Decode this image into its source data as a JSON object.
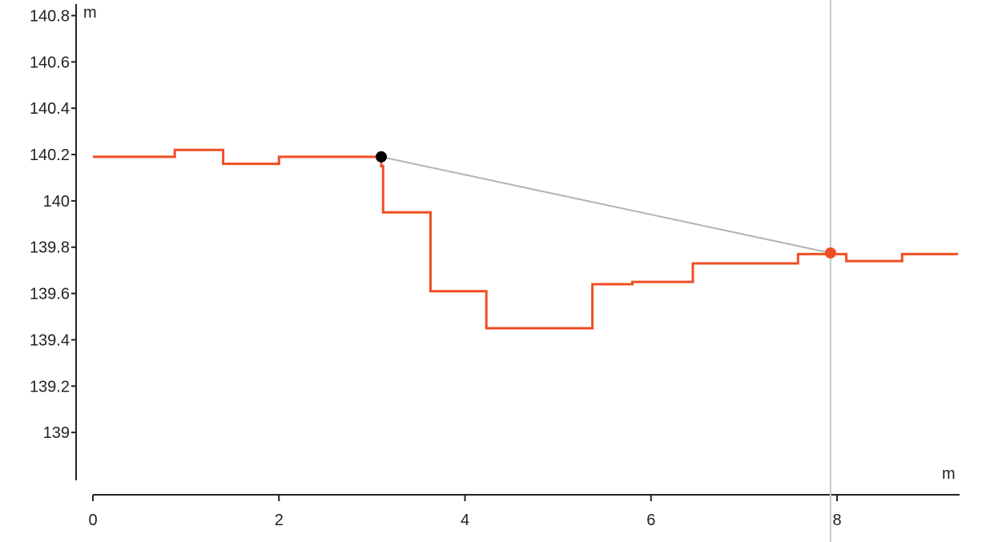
{
  "chart_data": {
    "type": "line",
    "title": "",
    "xlabel": "m",
    "ylabel": "m",
    "xlim": [
      0,
      9.3
    ],
    "ylim": [
      138.8,
      140.85
    ],
    "x_ticks": [
      0,
      2,
      4,
      6,
      8
    ],
    "y_ticks": [
      139,
      139.2,
      139.4,
      139.6,
      139.8,
      140,
      140.2,
      140.4,
      140.6,
      140.8
    ],
    "x_tick_labels": [
      "0",
      "2",
      "4",
      "6",
      "8"
    ],
    "y_tick_labels": [
      "139",
      "139.2",
      "139.4",
      "139.6",
      "139.8",
      "140",
      "140.2",
      "140.4",
      "140.6",
      "140.8"
    ],
    "grid": false,
    "series": [
      {
        "color": "#f04e23",
        "x": [
          0,
          0.88,
          0.88,
          1.4,
          1.4,
          2.0,
          2.0,
          3.1,
          3.1,
          3.1,
          3.12,
          3.12,
          3.63,
          3.63,
          4.23,
          4.23,
          5.37,
          5.37,
          5.8,
          5.8,
          6.45,
          6.45,
          7.58,
          7.58,
          7.7,
          7.95,
          8.1,
          8.1,
          8.7,
          8.7,
          9.3
        ],
        "y": [
          140.19,
          140.19,
          140.22,
          140.22,
          140.16,
          140.16,
          140.19,
          140.19,
          140.19,
          140.15,
          140.15,
          139.95,
          139.95,
          139.61,
          139.61,
          139.45,
          139.45,
          139.64,
          139.64,
          139.65,
          139.65,
          139.73,
          139.73,
          139.77,
          139.77,
          139.77,
          139.77,
          139.74,
          139.74,
          139.77,
          139.77
        ]
      }
    ],
    "reference_line": {
      "color": "#b3b3b3",
      "from": {
        "x": 3.1,
        "y": 140.19
      },
      "to": {
        "x": 7.93,
        "y": 139.775
      }
    },
    "markers": [
      {
        "x": 3.1,
        "y": 140.19,
        "color": "#000000"
      },
      {
        "x": 7.93,
        "y": 139.775,
        "color": "#f04e23"
      }
    ],
    "cursor_x": 7.93,
    "cursor_color": "#c8c8c8"
  }
}
